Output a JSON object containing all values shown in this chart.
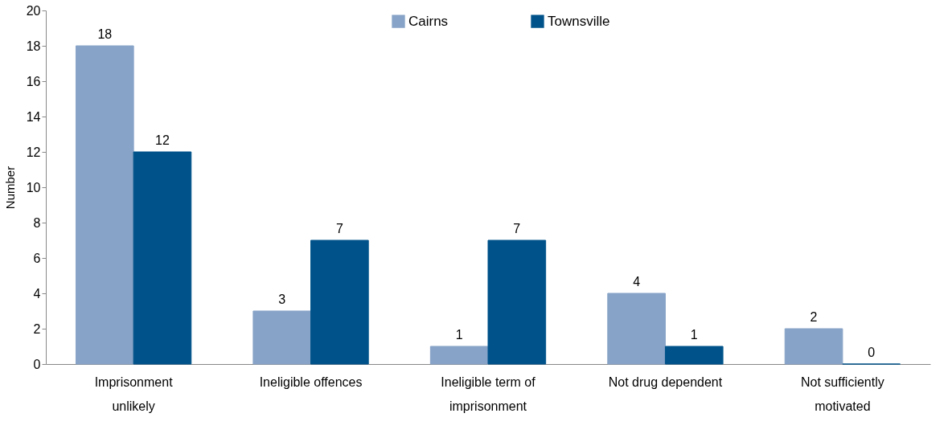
{
  "chart_data": {
    "type": "bar",
    "ylabel": "Number",
    "categories": [
      "Imprisonment unlikely",
      "Ineligible offences",
      "Ineligible term of imprisonment",
      "Not drug dependent",
      "Not sufficiently motivated"
    ],
    "series": [
      {
        "name": "Cairns",
        "color": "#87a3c7",
        "values": [
          18,
          3,
          1,
          4,
          2
        ]
      },
      {
        "name": "Townsville",
        "color": "#00538a",
        "values": [
          12,
          7,
          7,
          1,
          0
        ]
      }
    ],
    "ylim": [
      0,
      20
    ],
    "yticks": [
      0,
      2,
      4,
      6,
      8,
      10,
      12,
      14,
      16,
      18,
      20
    ],
    "data_labels": true,
    "legend": "top",
    "grid": false
  }
}
